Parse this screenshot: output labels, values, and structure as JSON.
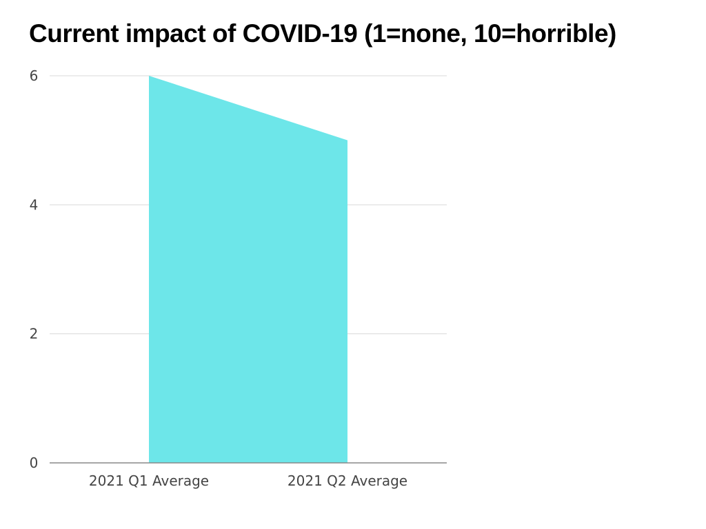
{
  "chart_data": {
    "type": "area",
    "title": "Current impact of COVID-19 (1=none, 10=horrible)",
    "xlabel": "",
    "ylabel": "",
    "categories": [
      "2021 Q1 Average",
      "2021 Q2 Average"
    ],
    "series": [
      {
        "values": [
          6,
          5
        ],
        "color": "#6de6e9"
      }
    ],
    "ylim": [
      0,
      6
    ],
    "yticks": [
      0,
      2,
      4,
      6
    ],
    "grid": true,
    "legend": "none"
  }
}
